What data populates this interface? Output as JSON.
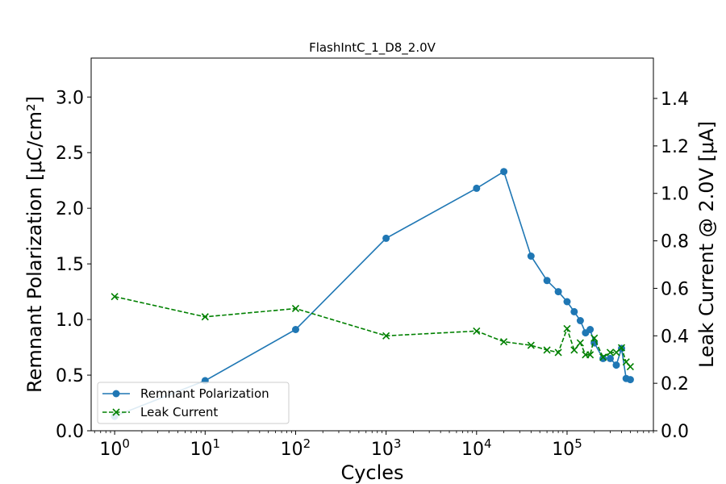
{
  "chart_data": {
    "type": "line",
    "title": "FlashIntC_1_D8_2.0V",
    "xlabel": "Cycles",
    "ylabel_left": "Remnant Polarization [μC/cm²]",
    "ylabel_right": "Leak Current @ 2.0V [μA]",
    "x_scale": "log",
    "xlim": [
      0.55,
      900000
    ],
    "x_ticks": [
      1,
      10,
      100,
      1000,
      10000,
      100000
    ],
    "x_tick_labels": [
      {
        "base": "10",
        "exp": "0"
      },
      {
        "base": "10",
        "exp": "1"
      },
      {
        "base": "10",
        "exp": "2"
      },
      {
        "base": "10",
        "exp": "3"
      },
      {
        "base": "10",
        "exp": "4"
      },
      {
        "base": "10",
        "exp": "5"
      }
    ],
    "ylim_left": [
      0,
      3.35
    ],
    "y_ticks_left": [
      "0.0",
      "0.5",
      "1.0",
      "1.5",
      "2.0",
      "2.5",
      "3.0"
    ],
    "ylim_right": [
      0,
      1.57
    ],
    "y_ticks_right": [
      "0.0",
      "0.2",
      "0.4",
      "0.6",
      "0.8",
      "1.0",
      "1.2",
      "1.4"
    ],
    "grid": false,
    "legend_position": "lower-left",
    "series": [
      {
        "name": "Remnant Polarization",
        "axis": "left",
        "color": "#1f77b4",
        "marker": "circle",
        "linestyle": "solid",
        "x": [
          1,
          10,
          100,
          1000,
          10000,
          20000,
          40000,
          60000,
          80000,
          100000,
          120000,
          140000,
          160000,
          180000,
          200000,
          250000,
          300000,
          350000,
          400000,
          450000,
          500000
        ],
        "y": [
          0.13,
          0.45,
          0.91,
          1.73,
          2.18,
          2.33,
          1.57,
          1.35,
          1.25,
          1.16,
          1.07,
          0.99,
          0.88,
          0.91,
          0.79,
          0.65,
          0.65,
          0.59,
          0.74,
          0.47,
          0.46
        ]
      },
      {
        "name": "Leak Current",
        "axis": "right",
        "color": "#008000",
        "marker": "x",
        "linestyle": "dashed",
        "x": [
          1,
          10,
          100,
          1000,
          10000,
          20000,
          40000,
          60000,
          80000,
          100000,
          120000,
          140000,
          160000,
          180000,
          200000,
          250000,
          300000,
          350000,
          400000,
          450000,
          500000
        ],
        "y": [
          0.565,
          0.48,
          0.515,
          0.4,
          0.42,
          0.375,
          0.36,
          0.34,
          0.33,
          0.43,
          0.34,
          0.37,
          0.32,
          0.32,
          0.39,
          0.31,
          0.33,
          0.33,
          0.35,
          0.29,
          0.27
        ]
      }
    ]
  }
}
